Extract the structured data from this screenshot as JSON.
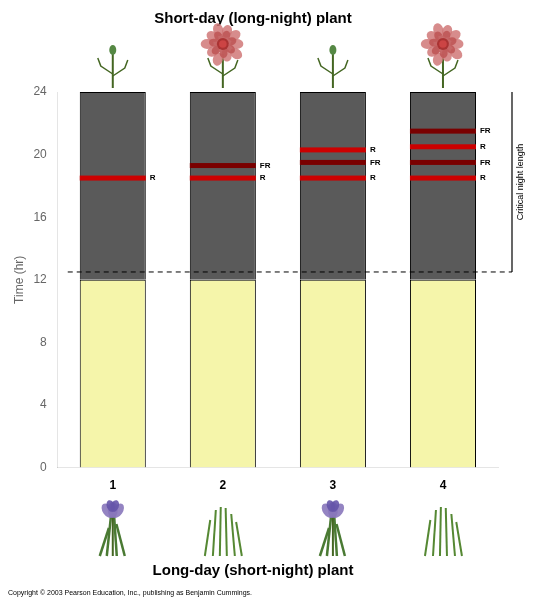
{
  "chart_data": {
    "type": "bar",
    "stacked": true,
    "title": "Short-day (long-night) plant",
    "subtitle": "Long-day (short-night) plant",
    "ylabel": "Time (hr)",
    "categories": [
      "1",
      "2",
      "3",
      "4"
    ],
    "series": [
      {
        "color": "#f5f5aa",
        "values": [
          12,
          12,
          12,
          12
        ]
      },
      {
        "color": "#5a5a5a",
        "values": [
          12,
          12,
          12,
          12
        ]
      }
    ],
    "ylim": [
      0,
      24
    ],
    "yticks": [
      0,
      4,
      8,
      12,
      16,
      20,
      24
    ],
    "grid": false,
    "flash_colors": {
      "R": "#cc0000",
      "FR": "#7a0000"
    },
    "flashes": [
      [
        {
          "y": 18.5,
          "text": "R"
        }
      ],
      [
        {
          "y": 19.3,
          "text": "FR"
        },
        {
          "y": 18.5,
          "text": "R"
        }
      ],
      [
        {
          "y": 20.3,
          "text": "R"
        },
        {
          "y": 19.5,
          "text": "FR"
        },
        {
          "y": 18.5,
          "text": "R"
        }
      ],
      [
        {
          "y": 21.5,
          "text": "FR"
        },
        {
          "y": 20.5,
          "text": "R"
        },
        {
          "y": 19.5,
          "text": "FR"
        },
        {
          "y": 18.5,
          "text": "R"
        }
      ]
    ],
    "blooms_top": [
      false,
      true,
      false,
      true
    ],
    "blooms_bottom": [
      true,
      false,
      true,
      false
    ],
    "annotations": [
      {
        "text": "Critical night length",
        "y": 12.5,
        "line_style": "dashed"
      },
      {
        "text": "Copyright © 2003 Pearson Education, Inc., publishing as Benjamin Cummings."
      }
    ]
  }
}
